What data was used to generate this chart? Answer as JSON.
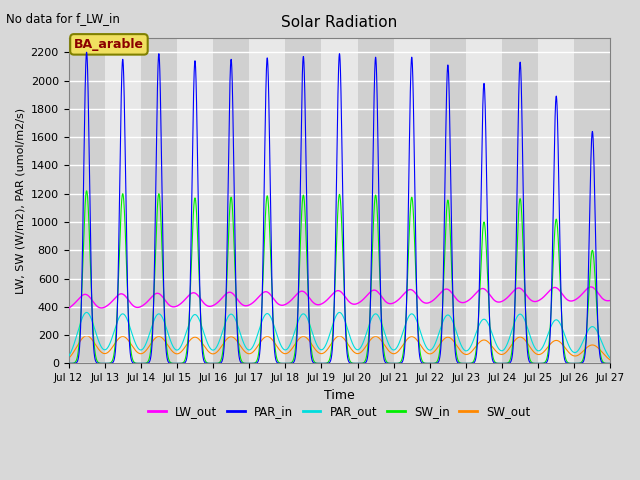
{
  "title": "Solar Radiation",
  "top_left_text": "No data for f_LW_in",
  "legend_label": "BA_arable",
  "xlabel": "Time",
  "ylabel": "LW, SW (W/m2), PAR (umol/m2/s)",
  "xlim": [
    11,
    27
  ],
  "ylim": [
    0,
    2300
  ],
  "yticks": [
    0,
    200,
    400,
    600,
    800,
    1000,
    1200,
    1400,
    1600,
    1800,
    2000,
    2200
  ],
  "xtick_labels": [
    "Jul 12",
    "Jul 13",
    "Jul 14",
    "Jul 15",
    "Jul 16",
    "Jul 17",
    "Jul 18",
    "Jul 19",
    "Jul 20",
    "Jul 21",
    "Jul 22",
    "Jul 23",
    "Jul 24",
    "Jul 25",
    "Jul 26",
    "Jul 27"
  ],
  "xtick_positions": [
    12,
    13,
    14,
    15,
    16,
    17,
    18,
    19,
    20,
    21,
    22,
    23,
    24,
    25,
    26,
    27
  ],
  "colors": {
    "LW_out": "#ff00ff",
    "PAR_in": "#0000ff",
    "PAR_out": "#00dddd",
    "SW_in": "#00ee00",
    "SW_out": "#ff8800"
  },
  "background_color": "#d8d8d8",
  "plot_bg_color_light": "#e8e8e8",
  "plot_bg_color_dark": "#d0d0d0",
  "grid_color": "#ffffff",
  "PAR_in_peaks": [
    2200,
    2150,
    2190,
    2140,
    2150,
    2160,
    2170,
    2190,
    2165,
    2165,
    2110,
    1980,
    2130,
    1890,
    1640
  ],
  "SW_in_peaks": [
    1220,
    1200,
    1200,
    1170,
    1175,
    1185,
    1190,
    1195,
    1190,
    1175,
    1155,
    1000,
    1165,
    1020,
    800
  ],
  "PAR_out_peaks": [
    360,
    350,
    350,
    345,
    348,
    352,
    350,
    360,
    350,
    350,
    342,
    312,
    348,
    308,
    260
  ],
  "SW_out_peaks": [
    195,
    190,
    190,
    185,
    188,
    190,
    190,
    193,
    190,
    189,
    185,
    165,
    186,
    162,
    130
  ],
  "LW_out_day_values": [
    380,
    460,
    380,
    440,
    380,
    440,
    380,
    430,
    380,
    450,
    380,
    430,
    380,
    480,
    380,
    500,
    380,
    490,
    380,
    500,
    380,
    510,
    380,
    460,
    380,
    520,
    380,
    480,
    380,
    410
  ],
  "num_days": 15,
  "start_day": 12
}
